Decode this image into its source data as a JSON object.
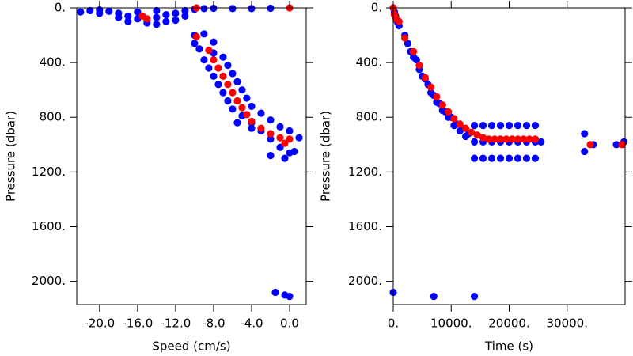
{
  "chart_data": [
    {
      "type": "scatter",
      "x_label": "Speed (cm/s)",
      "y_label": "Pressure (dbar)",
      "xlim": [
        -22.4,
        1.75
      ],
      "ylim": [
        0,
        2170
      ],
      "y_inverted": true,
      "xticks": [
        {
          "value": -20,
          "label": "-20.0"
        },
        {
          "value": -16,
          "label": "-16.0"
        },
        {
          "value": -12,
          "label": "-12.0"
        },
        {
          "value": -8,
          "label": "-8.0"
        },
        {
          "value": -4,
          "label": "-4.0"
        },
        {
          "value": 0,
          "label": "0.0"
        }
      ],
      "yticks": [
        {
          "value": 0,
          "label": "0."
        },
        {
          "value": 400,
          "label": "400."
        },
        {
          "value": 800,
          "label": "800."
        },
        {
          "value": 1200,
          "label": "1200."
        },
        {
          "value": 1600,
          "label": "1600."
        },
        {
          "value": 2000,
          "label": "2000."
        }
      ],
      "series": [
        {
          "color": "#0000ff",
          "x": [
            -22,
            -21,
            -20,
            -19,
            -18,
            -17,
            -16,
            -15,
            -14,
            -13,
            -12,
            -11,
            -10,
            -9,
            -8,
            -17,
            -15,
            -14,
            -16,
            -13,
            -12,
            -18,
            -20,
            -11,
            -14,
            -6,
            -4,
            -2,
            -10,
            -9,
            -10,
            -8,
            -9.5,
            -8,
            -9,
            -7,
            -8.5,
            -6.5,
            -8,
            -6,
            -7.5,
            -5.5,
            -7,
            -5,
            -6.5,
            -4.5,
            -6,
            -4,
            -5,
            -3,
            -4,
            -2,
            -3,
            -1,
            -2,
            0,
            -1,
            1,
            0,
            -0.5,
            0.5,
            -4,
            -5.5,
            -2,
            -1.5,
            -0.5,
            0
          ],
          "y": [
            30,
            20,
            15,
            25,
            40,
            60,
            80,
            90,
            70,
            50,
            40,
            20,
            10,
            5,
            3,
            100,
            110,
            120,
            30,
            100,
            90,
            70,
            40,
            60,
            20,
            5,
            5,
            3,
            200,
            190,
            260,
            250,
            300,
            330,
            380,
            360,
            440,
            420,
            500,
            480,
            560,
            540,
            620,
            600,
            680,
            660,
            740,
            720,
            790,
            770,
            840,
            820,
            900,
            870,
            960,
            900,
            1020,
            950,
            1060,
            1100,
            1050,
            880,
            840,
            1080,
            2080,
            2100,
            2110
          ]
        },
        {
          "color": "#ff0000",
          "x": [
            -15.5,
            -15,
            0,
            -9.8,
            -9.8,
            -8.5,
            -8,
            -7.5,
            -7,
            -6.5,
            -6,
            -5.5,
            -5,
            -4.5,
            -4,
            -3,
            -2,
            -1,
            0,
            -0.5
          ],
          "y": [
            60,
            80,
            0,
            0,
            210,
            310,
            380,
            440,
            500,
            560,
            620,
            680,
            730,
            780,
            830,
            880,
            920,
            950,
            960,
            990
          ]
        }
      ]
    },
    {
      "type": "scatter",
      "x_label": "Time (s)",
      "y_label": "Pressure (dbar)",
      "xlim": [
        0,
        40000
      ],
      "ylim": [
        0,
        2170
      ],
      "y_inverted": true,
      "xticks": [
        {
          "value": 0,
          "label": "0."
        },
        {
          "value": 10000,
          "label": "10000."
        },
        {
          "value": 20000,
          "label": "20000."
        },
        {
          "value": 30000,
          "label": "30000."
        }
      ],
      "yticks": [
        {
          "value": 0,
          "label": "0."
        },
        {
          "value": 400,
          "label": "400."
        },
        {
          "value": 800,
          "label": "800."
        },
        {
          "value": 1200,
          "label": "1200."
        },
        {
          "value": 1600,
          "label": "1600."
        },
        {
          "value": 2000,
          "label": "2000."
        }
      ],
      "series": [
        {
          "color": "#0000ff",
          "x": [
            0,
            200,
            400,
            600,
            800,
            1000,
            2000,
            2500,
            3000,
            3500,
            4000,
            4500,
            5000,
            5500,
            6000,
            6500,
            7000,
            7500,
            8000,
            8500,
            9000,
            9500,
            10000,
            10500,
            11000,
            11500,
            12000,
            12500,
            13000,
            14000,
            14000,
            14000,
            15500,
            15500,
            15500,
            17000,
            17000,
            17000,
            18500,
            18500,
            18500,
            20000,
            20000,
            20000,
            21500,
            21500,
            21500,
            23000,
            23000,
            23000,
            24500,
            24500,
            24500,
            25500,
            33000,
            33000,
            34500,
            38500,
            39800,
            0,
            7000,
            14000
          ],
          "y": [
            0,
            30,
            60,
            90,
            110,
            130,
            200,
            260,
            320,
            360,
            380,
            450,
            500,
            520,
            560,
            620,
            640,
            690,
            700,
            750,
            760,
            800,
            800,
            860,
            850,
            900,
            880,
            940,
            920,
            860,
            980,
            1100,
            860,
            980,
            1100,
            860,
            980,
            1100,
            860,
            980,
            1100,
            860,
            980,
            1100,
            860,
            980,
            1100,
            860,
            980,
            1100,
            860,
            980,
            1100,
            980,
            920,
            1050,
            1000,
            1000,
            980,
            2080,
            2110,
            2110
          ]
        },
        {
          "color": "#ff0000",
          "x": [
            0,
            200,
            500,
            1000,
            2000,
            3500,
            4500,
            5500,
            6500,
            7500,
            8500,
            9500,
            10500,
            11500,
            12500,
            13500,
            14500,
            15500,
            16500,
            17500,
            18500,
            19500,
            20500,
            21500,
            22500,
            23500,
            24500,
            34000,
            39500
          ],
          "y": [
            0,
            50,
            80,
            100,
            220,
            320,
            420,
            510,
            580,
            650,
            710,
            760,
            810,
            850,
            880,
            910,
            930,
            950,
            960,
            960,
            960,
            960,
            960,
            960,
            960,
            960,
            960,
            1000,
            1000
          ]
        }
      ]
    }
  ]
}
